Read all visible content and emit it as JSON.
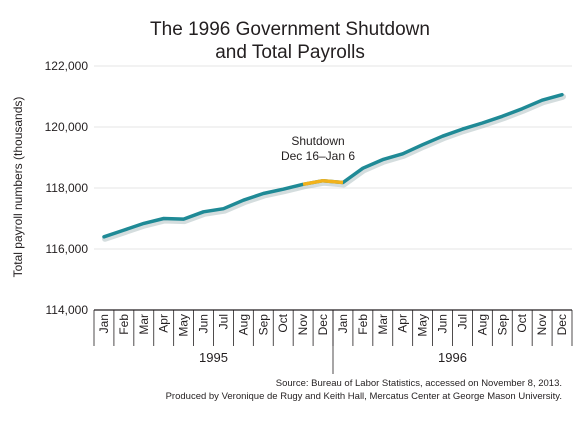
{
  "chart_data": {
    "type": "line",
    "title_line1": "The 1996 Government Shutdown",
    "title_line2": "and Total Payrolls",
    "ylabel": "Total payroll numbers (thousands)",
    "ylim": [
      114000,
      122000
    ],
    "yticks": [
      114000,
      116000,
      118000,
      120000,
      122000
    ],
    "ytick_labels": [
      "114,000",
      "116,000",
      "118,000",
      "120,000",
      "122,000"
    ],
    "grid": true,
    "categories": [
      "Jan",
      "Feb",
      "Mar",
      "Apr",
      "May",
      "Jun",
      "Jul",
      "Aug",
      "Sep",
      "Oct",
      "Nov",
      "Dec",
      "Jan",
      "Feb",
      "Mar",
      "Apr",
      "May",
      "Jun",
      "Jul",
      "Aug",
      "Sep",
      "Oct",
      "Nov",
      "Dec"
    ],
    "years": [
      {
        "label": "1995",
        "start": 0,
        "end": 11
      },
      {
        "label": "1996",
        "start": 12,
        "end": 23
      }
    ],
    "series": [
      {
        "color": "#1f8a96",
        "values": [
          116400,
          116620,
          116840,
          117000,
          116980,
          117220,
          117320,
          117600,
          117820,
          117960,
          118120,
          118240,
          118180,
          118650,
          118930,
          119120,
          119420,
          119700,
          119930,
          120130,
          120350,
          120600,
          120880,
          121060
        ]
      }
    ],
    "highlight": {
      "color": "#f2b21b",
      "start_index": 10,
      "end_index": 12,
      "label_line1": "Shutdown",
      "label_line2": "Dec 16–Jan 6"
    },
    "source_line1": "Source: Bureau of Labor Statistics, accessed on November 8, 2013.",
    "source_line2": "Produced by Veronique de Rugy and Keith Hall, Mercatus Center at George Mason University."
  }
}
